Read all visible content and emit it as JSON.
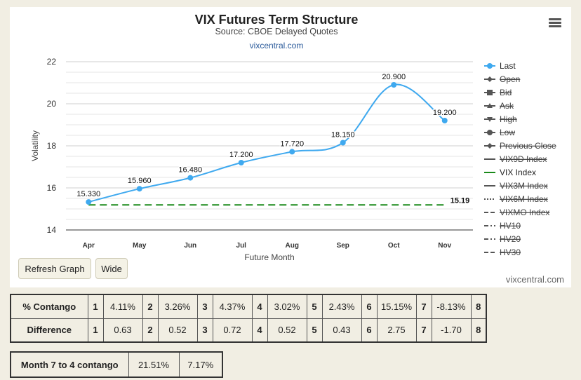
{
  "chart_data": {
    "type": "line",
    "title": "VIX Futures Term Structure",
    "subtitle": "Source: CBOE Delayed Quotes",
    "credit_link": "vixcentral.com",
    "credit": "vixcentral.com",
    "xlabel": "Future Month",
    "ylabel": "Volatility",
    "ylim": [
      14,
      22
    ],
    "yticks": [
      14,
      16,
      18,
      20,
      22
    ],
    "categories": [
      "Apr",
      "May",
      "Jun",
      "Jul",
      "Aug",
      "Sep",
      "Oct",
      "Nov"
    ],
    "series": [
      {
        "name": "Last",
        "values": [
          15.33,
          15.96,
          16.48,
          17.2,
          17.72,
          18.15,
          20.9,
          19.2
        ],
        "labels": [
          "15.330",
          "15.960",
          "16.480",
          "17.200",
          "17.720",
          "18.150",
          "20.900",
          "19.200"
        ],
        "color": "#3fa9ef"
      },
      {
        "name": "VIX Index",
        "values": [
          15.19,
          15.19,
          15.19,
          15.19,
          15.19,
          15.19,
          15.19,
          15.19
        ],
        "end_label": "15.19",
        "color": "#1a8a1a"
      }
    ],
    "grid": true,
    "legend_position": "right",
    "legend": [
      {
        "name": "Last",
        "active": true,
        "marker": "circle",
        "line": "solid",
        "color": "#3fa9ef"
      },
      {
        "name": "Open",
        "active": false,
        "marker": "diamond",
        "line": "solid",
        "color": "#555555"
      },
      {
        "name": "Bid",
        "active": false,
        "marker": "square",
        "line": "solid",
        "color": "#555555"
      },
      {
        "name": "Ask",
        "active": false,
        "marker": "triangle",
        "line": "solid",
        "color": "#555555"
      },
      {
        "name": "High",
        "active": false,
        "marker": "triangle-down",
        "line": "solid",
        "color": "#555555"
      },
      {
        "name": "Low",
        "active": false,
        "marker": "circle",
        "line": "solid",
        "color": "#555555"
      },
      {
        "name": "Previous Close",
        "active": false,
        "marker": "diamond",
        "line": "solid",
        "color": "#555555"
      },
      {
        "name": "VIX9D Index",
        "active": false,
        "marker": "none",
        "line": "solid",
        "color": "#555555"
      },
      {
        "name": "VIX Index",
        "active": true,
        "marker": "none",
        "line": "solid",
        "color": "#1a8a1a"
      },
      {
        "name": "VIX3M Index",
        "active": false,
        "marker": "none",
        "line": "solid",
        "color": "#555555"
      },
      {
        "name": "VIX6M Index",
        "active": false,
        "marker": "none",
        "line": "dotted",
        "color": "#555555"
      },
      {
        "name": "VIXMO Index",
        "active": false,
        "marker": "none",
        "line": "dashed",
        "color": "#555555"
      },
      {
        "name": "HV10",
        "active": false,
        "marker": "none",
        "line": "dashdot",
        "color": "#555555"
      },
      {
        "name": "HV20",
        "active": false,
        "marker": "none",
        "line": "dashdot",
        "color": "#555555"
      },
      {
        "name": "HV30",
        "active": false,
        "marker": "none",
        "line": "dashed",
        "color": "#555555"
      }
    ]
  },
  "buttons": {
    "refresh": "Refresh Graph",
    "wide": "Wide"
  },
  "contango": {
    "label": "% Contango",
    "cells": [
      {
        "idx": "1",
        "val": "4.11%"
      },
      {
        "idx": "2",
        "val": "3.26%"
      },
      {
        "idx": "3",
        "val": "4.37%"
      },
      {
        "idx": "4",
        "val": "3.02%"
      },
      {
        "idx": "5",
        "val": "2.43%"
      },
      {
        "idx": "6",
        "val": "15.15%"
      },
      {
        "idx": "7",
        "val": "-8.13%"
      },
      {
        "idx": "8",
        "val": ""
      }
    ]
  },
  "difference": {
    "label": "Difference",
    "cells": [
      {
        "idx": "1",
        "val": "0.63"
      },
      {
        "idx": "2",
        "val": "0.52"
      },
      {
        "idx": "3",
        "val": "0.72"
      },
      {
        "idx": "4",
        "val": "0.52"
      },
      {
        "idx": "5",
        "val": "0.43"
      },
      {
        "idx": "6",
        "val": "2.75"
      },
      {
        "idx": "7",
        "val": "-1.70"
      },
      {
        "idx": "8",
        "val": ""
      }
    ]
  },
  "summary": {
    "label": "Month 7 to 4 contango",
    "v1": "21.51%",
    "v2": "7.17%"
  }
}
